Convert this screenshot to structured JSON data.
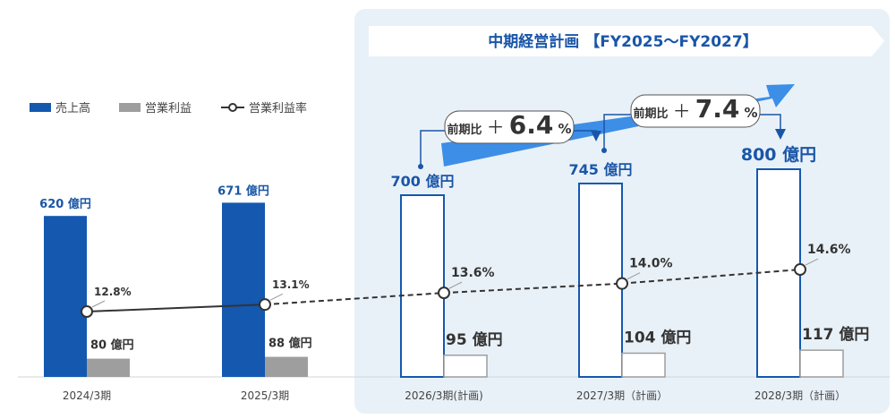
{
  "plan_banner": "中期経営計画 【FY2025～FY2027】",
  "legend": {
    "sales": "売上高",
    "op_income": "営業利益",
    "op_margin": "営業利益率"
  },
  "growth": [
    {
      "prefix": "前期比",
      "sign": "＋",
      "value": "6.4",
      "unit": "%"
    },
    {
      "prefix": "前期比",
      "sign": "＋",
      "value": "7.4",
      "unit": "%"
    }
  ],
  "colors": {
    "sales": "#1458b0",
    "op_income": "#9e9e9e",
    "plan_panel": "#e9f1f8",
    "arrow": "#3d8ee6",
    "label_blue": "#1a56a8",
    "label_dark": "#333333"
  },
  "chart_data": {
    "type": "bar",
    "categories": [
      "2024/3期",
      "2025/3期",
      "2026/3期(計画)",
      "2027/3期（計画）",
      "2028/3期（計画）"
    ],
    "plan": [
      false,
      false,
      true,
      true,
      true
    ],
    "series": [
      {
        "name": "売上高",
        "type": "bar",
        "unit": "億円",
        "values": [
          620,
          671,
          700,
          745,
          800
        ],
        "labels": [
          "620 億円",
          "671 億円",
          "700 億円",
          "745 億円",
          "800 億円"
        ]
      },
      {
        "name": "営業利益",
        "type": "bar",
        "unit": "億円",
        "values": [
          80,
          88,
          95,
          104,
          117
        ],
        "labels": [
          "80 億円",
          "88 億円",
          "95 億円",
          "104 億円",
          "117 億円"
        ]
      },
      {
        "name": "営業利益率",
        "type": "line",
        "unit": "%",
        "values": [
          12.8,
          13.1,
          13.6,
          14.0,
          14.6
        ],
        "labels": [
          "12.8%",
          "13.1%",
          "13.6%",
          "14.0%",
          "14.6%"
        ]
      }
    ],
    "legend_position": "top-left",
    "grid": false
  }
}
